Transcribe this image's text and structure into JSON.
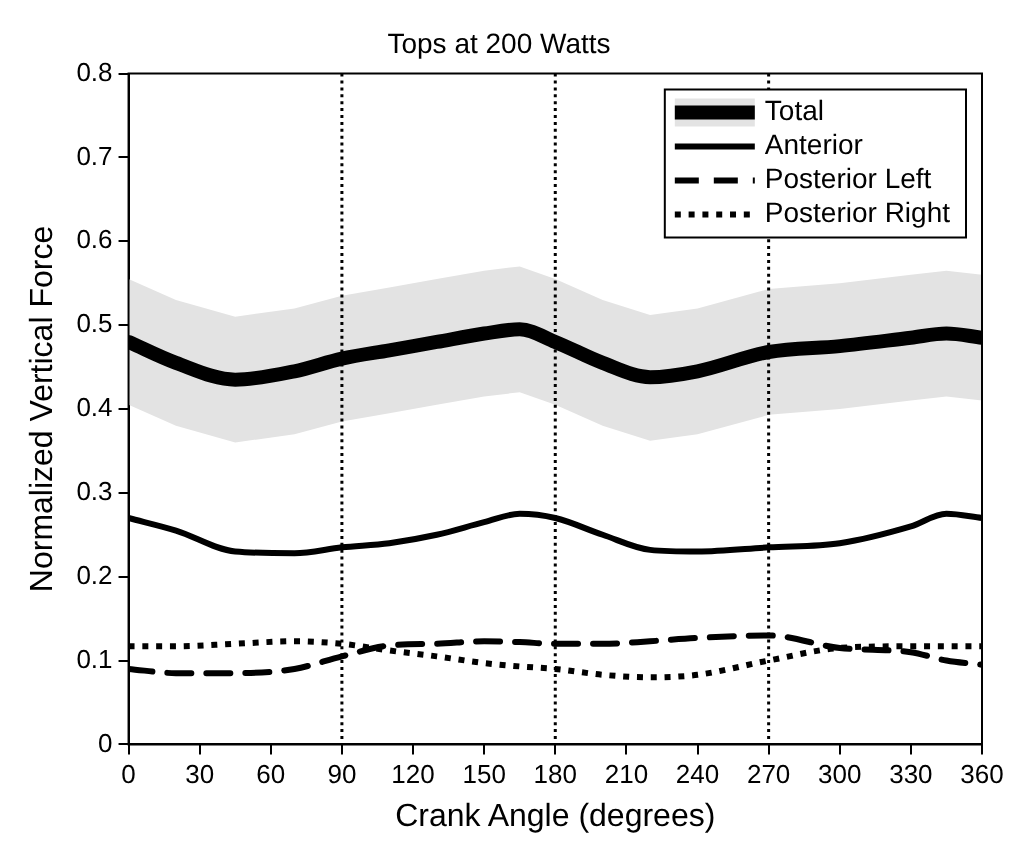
{
  "chart_data": {
    "type": "line",
    "title": "Tops at 200 Watts",
    "xlabel": "Crank Angle (degrees)",
    "ylabel": "Normalized Vertical Force",
    "x": [
      0,
      20,
      45,
      70,
      90,
      110,
      130,
      150,
      165,
      180,
      200,
      220,
      240,
      270,
      300,
      330,
      345,
      360
    ],
    "series": [
      {
        "name": "Total",
        "color": "#000000",
        "line_style": "solid",
        "values": [
          0.48,
          0.455,
          0.435,
          0.445,
          0.46,
          0.47,
          0.48,
          0.49,
          0.495,
          0.48,
          0.455,
          0.438,
          0.445,
          0.468,
          0.475,
          0.485,
          0.49,
          0.485
        ],
        "lower": [
          0.405,
          0.38,
          0.36,
          0.37,
          0.385,
          0.395,
          0.405,
          0.415,
          0.42,
          0.405,
          0.38,
          0.362,
          0.37,
          0.393,
          0.4,
          0.41,
          0.415,
          0.41
        ],
        "upper": [
          0.555,
          0.53,
          0.51,
          0.52,
          0.535,
          0.545,
          0.555,
          0.565,
          0.57,
          0.555,
          0.53,
          0.512,
          0.52,
          0.543,
          0.55,
          0.56,
          0.565,
          0.56
        ]
      },
      {
        "name": "Anterior",
        "color": "#000000",
        "line_style": "solid",
        "values": [
          0.27,
          0.255,
          0.23,
          0.228,
          0.235,
          0.24,
          0.25,
          0.265,
          0.275,
          0.27,
          0.25,
          0.232,
          0.23,
          0.235,
          0.24,
          0.26,
          0.275,
          0.27
        ]
      },
      {
        "name": "Posterior Left",
        "color": "#000000",
        "line_style": "dashed",
        "values": [
          0.09,
          0.085,
          0.085,
          0.09,
          0.105,
          0.118,
          0.12,
          0.123,
          0.122,
          0.12,
          0.12,
          0.123,
          0.127,
          0.13,
          0.115,
          0.11,
          0.1,
          0.095
        ]
      },
      {
        "name": "Posterior Right",
        "color": "#000000",
        "line_style": "dotted",
        "values": [
          0.117,
          0.117,
          0.12,
          0.123,
          0.12,
          0.112,
          0.105,
          0.097,
          0.093,
          0.09,
          0.083,
          0.08,
          0.083,
          0.1,
          0.115,
          0.117,
          0.117,
          0.117
        ]
      }
    ],
    "xlim": [
      0,
      360
    ],
    "xticks": [
      0,
      30,
      60,
      90,
      120,
      150,
      180,
      210,
      240,
      270,
      300,
      330,
      360
    ],
    "ylim": [
      0,
      0.8
    ],
    "yticks": [
      0,
      0.1,
      0.2,
      0.3,
      0.4,
      0.5,
      0.6,
      0.7,
      0.8
    ],
    "ref_lines": [
      {
        "axis": "x",
        "value": 90,
        "line_style": "dotted"
      },
      {
        "axis": "x",
        "value": 180,
        "line_style": "dotted"
      },
      {
        "axis": "x",
        "value": 270,
        "line_style": "dotted"
      }
    ],
    "grid": false,
    "legend": "top right",
    "marker": "none"
  }
}
